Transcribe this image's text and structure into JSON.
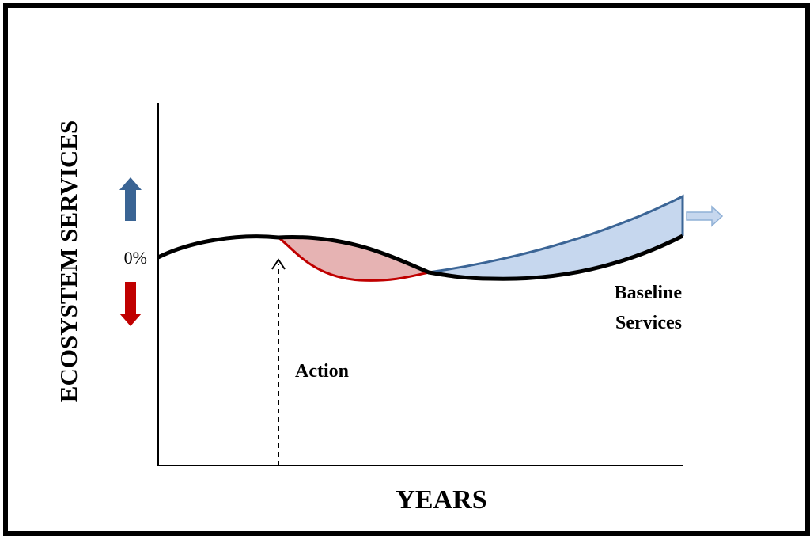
{
  "diagram": {
    "y_axis_label": "ECOSYSTEM SERVICES",
    "x_axis_label": "YEARS",
    "zero_label": "0%",
    "action_label": "Action",
    "baseline_label_line1": "Baseline",
    "baseline_label_line2": "Services"
  },
  "colors": {
    "baseline": "#000000",
    "loss_stroke": "#c00000",
    "loss_fill": "#e6b3b3",
    "gain_stroke": "#3b6596",
    "gain_fill": "#c6d7ee",
    "up_arrow": "#3a6494",
    "down_arrow": "#c00000",
    "continue_arrow_fill": "#c6d7ee",
    "continue_arrow_stroke": "#8fb0d6"
  },
  "icons": {
    "up": "arrow-up-icon",
    "down": "arrow-down-icon",
    "continue": "arrow-right-icon"
  }
}
